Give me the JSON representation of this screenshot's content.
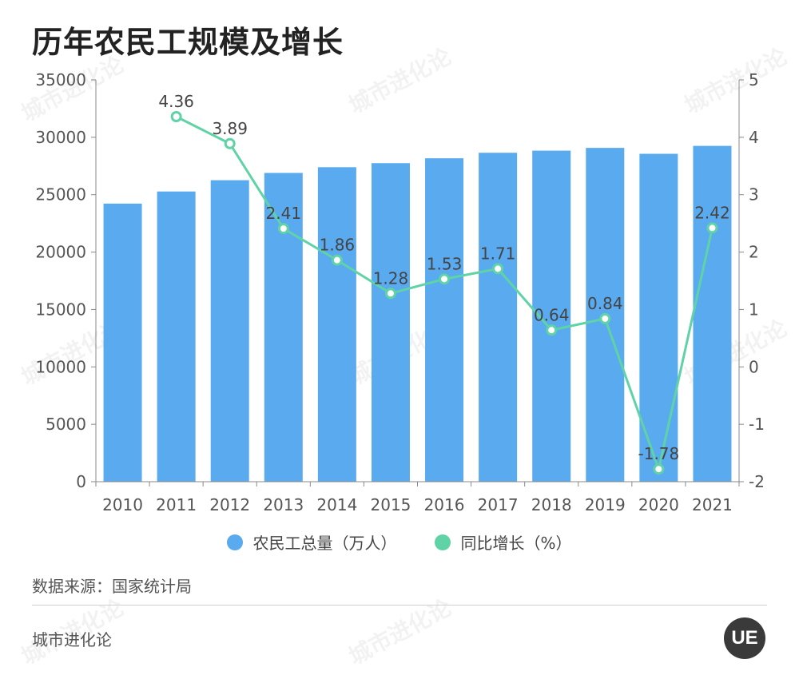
{
  "title": "历年农民工规模及增长",
  "source": "数据来源：国家统计局",
  "brand": "城市进化论",
  "logo_text": "UE",
  "watermark": "城市进化论",
  "colors": {
    "bar": "#5aaaf0",
    "line": "#5fd3a6",
    "axis": "#888888"
  },
  "legend": [
    {
      "label": "农民工总量（万人）",
      "color": "#5aaaf0"
    },
    {
      "label": "同比增长（%）",
      "color": "#5fd3a6"
    }
  ],
  "chart_data": {
    "type": "bar",
    "categories": [
      "2010",
      "2011",
      "2012",
      "2013",
      "2014",
      "2015",
      "2016",
      "2017",
      "2018",
      "2019",
      "2020",
      "2021"
    ],
    "series": [
      {
        "name": "农民工总量（万人）",
        "type": "bar",
        "axis": "left",
        "values": [
          24223,
          25278,
          26261,
          26894,
          27395,
          27747,
          28171,
          28652,
          28836,
          29077,
          28560,
          29251
        ]
      },
      {
        "name": "同比增长（%）",
        "type": "line",
        "axis": "right",
        "values": [
          null,
          4.36,
          3.89,
          2.41,
          1.86,
          1.28,
          1.53,
          1.71,
          0.64,
          0.84,
          -1.78,
          2.42
        ]
      }
    ],
    "y_left": {
      "min": 0,
      "max": 35000,
      "ticks": [
        "0",
        "5000",
        "10000",
        "15000",
        "20000",
        "25000",
        "30000",
        "35000"
      ]
    },
    "y_right": {
      "min": -2,
      "max": 5,
      "ticks": [
        "-2",
        "-1",
        "0",
        "1",
        "2",
        "3",
        "4",
        "5"
      ]
    },
    "data_labels": [
      "",
      "4.36",
      "3.89",
      "2.41",
      "1.86",
      "1.28",
      "1.53",
      "1.71",
      "0.64",
      "0.84",
      "-1.78",
      "2.42"
    ],
    "grid": false,
    "legend_position": "bottom"
  }
}
